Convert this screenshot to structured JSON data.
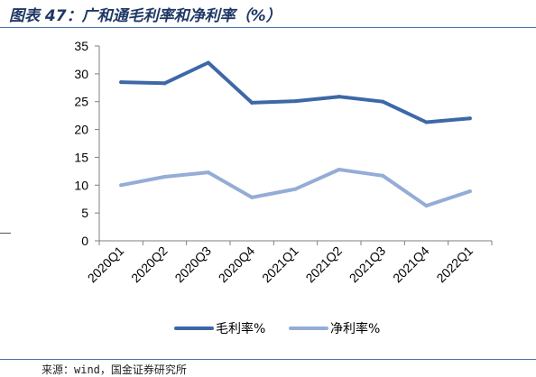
{
  "title": "图表 47：广和通毛利率和净利率（%）",
  "source": "来源：wind，国金证券研究所",
  "chart_data": {
    "type": "line",
    "categories": [
      "2020Q1",
      "2020Q2",
      "2020Q3",
      "2020Q4",
      "2021Q1",
      "2021Q2",
      "2021Q3",
      "2021Q4",
      "2022Q1"
    ],
    "series": [
      {
        "name": "毛利率%",
        "color": "#3d68a6",
        "values": [
          28.5,
          28.3,
          32.0,
          24.8,
          25.1,
          25.9,
          25.0,
          21.3,
          22.0
        ]
      },
      {
        "name": "净利率%",
        "color": "#95acd6",
        "values": [
          10.0,
          11.5,
          12.3,
          7.8,
          9.3,
          12.8,
          11.7,
          6.3,
          8.9
        ]
      }
    ],
    "ylim": [
      0,
      35
    ],
    "yticks": [
      0,
      5,
      10,
      15,
      20,
      25,
      30,
      35
    ],
    "legend": "bottom",
    "grid": false
  }
}
